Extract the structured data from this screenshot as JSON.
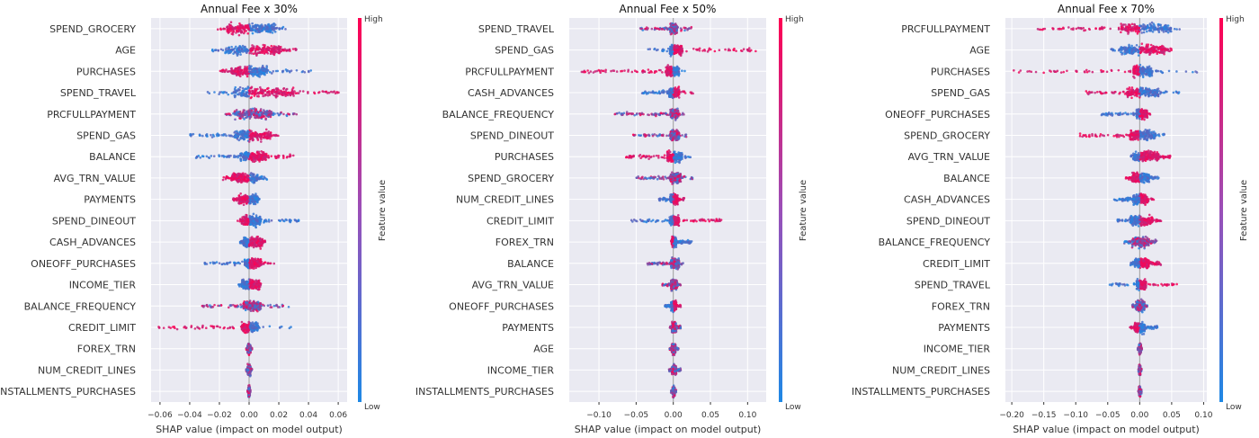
{
  "colorbar": {
    "high_label": "High",
    "low_label": "Low",
    "axis_label": "Feature value",
    "colors": {
      "high": "#ff0052",
      "mid": "#9b4fb8",
      "low": "#1e88e5"
    }
  },
  "colors": {
    "panel_bg": "#eaeaf2",
    "grid": "#ffffff",
    "zero_line": "#999999",
    "text": "#333333"
  },
  "chart_data": [
    {
      "type": "scatter",
      "subtype": "shap-beeswarm",
      "title": "Annual Fee x 30%",
      "xlabel": "SHAP value (impact on model output)",
      "ylabel": "",
      "xlim": [
        -0.066,
        0.066
      ],
      "xticks": [
        -0.06,
        -0.04,
        -0.02,
        0.0,
        0.02,
        0.04,
        0.06
      ],
      "xtick_labels": [
        "−0.06",
        "−0.04",
        "−0.02",
        "0.00",
        "0.02",
        "0.04",
        "0.06"
      ],
      "grid": true,
      "features": [
        {
          "name": "SPEND_GROCERY",
          "min": -0.023,
          "max": 0.029,
          "core": [
            -0.015,
            0.018
          ],
          "high_side": "negative"
        },
        {
          "name": "AGE",
          "min": -0.025,
          "max": 0.032,
          "core": [
            -0.017,
            0.022
          ],
          "high_side": "positive"
        },
        {
          "name": "PURCHASES",
          "min": -0.02,
          "max": 0.044,
          "core": [
            -0.012,
            0.012
          ],
          "high_side": "negative"
        },
        {
          "name": "SPEND_TRAVEL",
          "min": -0.029,
          "max": 0.061,
          "core": [
            -0.01,
            0.03
          ],
          "high_side": "positive"
        },
        {
          "name": "PRCFULLPAYMENT",
          "min": -0.016,
          "max": 0.032,
          "core": [
            -0.01,
            0.015
          ],
          "high_side": "mixed"
        },
        {
          "name": "SPEND_GAS",
          "min": -0.04,
          "max": 0.021,
          "core": [
            -0.01,
            0.015
          ],
          "high_side": "positive"
        },
        {
          "name": "BALANCE",
          "min": -0.037,
          "max": 0.032,
          "core": [
            -0.006,
            0.012
          ],
          "high_side": "positive"
        },
        {
          "name": "AVG_TRN_VALUE",
          "min": -0.018,
          "max": 0.012,
          "core": [
            -0.012,
            0.006
          ],
          "high_side": "negative"
        },
        {
          "name": "PAYMENTS",
          "min": -0.011,
          "max": 0.008,
          "core": [
            -0.007,
            0.006
          ],
          "high_side": "negative"
        },
        {
          "name": "SPEND_DINEOUT",
          "min": -0.009,
          "max": 0.034,
          "core": [
            -0.005,
            0.008
          ],
          "high_side": "negative"
        },
        {
          "name": "CASH_ADVANCES",
          "min": -0.006,
          "max": 0.011,
          "core": [
            -0.004,
            0.009
          ],
          "high_side": "positive"
        },
        {
          "name": "ONEOFF_PURCHASES",
          "min": -0.03,
          "max": 0.021,
          "core": [
            -0.003,
            0.008
          ],
          "high_side": "positive"
        },
        {
          "name": "INCOME_TIER",
          "min": -0.007,
          "max": 0.008,
          "core": [
            -0.005,
            0.007
          ],
          "high_side": "positive"
        },
        {
          "name": "BALANCE_FREQUENCY",
          "min": -0.033,
          "max": 0.027,
          "core": [
            -0.004,
            0.008
          ],
          "high_side": "mixed"
        },
        {
          "name": "CREDIT_LIMIT",
          "min": -0.062,
          "max": 0.029,
          "core": [
            -0.005,
            0.006
          ],
          "high_side": "negative"
        },
        {
          "name": "FOREX_TRN",
          "min": -0.002,
          "max": 0.002,
          "core": [
            -0.001,
            0.001
          ],
          "high_side": "mixed"
        },
        {
          "name": "NUM_CREDIT_LINES",
          "min": -0.002,
          "max": 0.002,
          "core": [
            -0.001,
            0.001
          ],
          "high_side": "mixed"
        },
        {
          "name": "INSTALLMENTS_PURCHASES",
          "min": -0.001,
          "max": 0.001,
          "core": [
            -0.0005,
            0.0005
          ],
          "high_side": "mixed"
        }
      ]
    },
    {
      "type": "scatter",
      "subtype": "shap-beeswarm",
      "title": "Annual Fee x 50%",
      "xlabel": "SHAP value (impact on model output)",
      "ylabel": "",
      "xlim": [
        -0.14,
        0.125
      ],
      "xticks": [
        -0.1,
        -0.05,
        0.0,
        0.05,
        0.1
      ],
      "xtick_labels": [
        "−0.10",
        "−0.05",
        "0.00",
        "0.05",
        "0.10"
      ],
      "grid": true,
      "features": [
        {
          "name": "SPEND_TRAVEL",
          "min": -0.045,
          "max": 0.025,
          "core": [
            -0.004,
            0.005
          ],
          "high_side": "mixed"
        },
        {
          "name": "SPEND_GAS",
          "min": -0.04,
          "max": 0.115,
          "core": [
            -0.005,
            0.012
          ],
          "high_side": "positive"
        },
        {
          "name": "PRCFULLPAYMENT",
          "min": -0.125,
          "max": 0.02,
          "core": [
            -0.01,
            0.008
          ],
          "high_side": "negative"
        },
        {
          "name": "CASH_ADVANCES",
          "min": -0.042,
          "max": 0.027,
          "core": [
            -0.006,
            0.008
          ],
          "high_side": "positive"
        },
        {
          "name": "BALANCE_FREQUENCY",
          "min": -0.08,
          "max": 0.015,
          "core": [
            -0.004,
            0.007
          ],
          "high_side": "mixed"
        },
        {
          "name": "SPEND_DINEOUT",
          "min": -0.055,
          "max": 0.018,
          "core": [
            -0.004,
            0.008
          ],
          "high_side": "mixed"
        },
        {
          "name": "PURCHASES",
          "min": -0.065,
          "max": 0.025,
          "core": [
            -0.008,
            0.012
          ],
          "high_side": "negative"
        },
        {
          "name": "SPEND_GROCERY",
          "min": -0.05,
          "max": 0.028,
          "core": [
            -0.005,
            0.01
          ],
          "high_side": "mixed"
        },
        {
          "name": "NUM_CREDIT_LINES",
          "min": -0.02,
          "max": 0.015,
          "core": [
            -0.004,
            0.006
          ],
          "high_side": "positive"
        },
        {
          "name": "CREDIT_LIMIT",
          "min": -0.058,
          "max": 0.065,
          "core": [
            -0.005,
            0.008
          ],
          "high_side": "positive"
        },
        {
          "name": "FOREX_TRN",
          "min": -0.003,
          "max": 0.025,
          "core": [
            -0.002,
            0.004
          ],
          "high_side": "negative"
        },
        {
          "name": "BALANCE",
          "min": -0.035,
          "max": 0.015,
          "core": [
            -0.003,
            0.008
          ],
          "high_side": "mixed"
        },
        {
          "name": "AVG_TRN_VALUE",
          "min": -0.015,
          "max": 0.01,
          "core": [
            -0.003,
            0.005
          ],
          "high_side": "mixed"
        },
        {
          "name": "ONEOFF_PURCHASES",
          "min": -0.012,
          "max": 0.01,
          "core": [
            -0.003,
            0.004
          ],
          "high_side": "positive"
        },
        {
          "name": "PAYMENTS",
          "min": -0.005,
          "max": 0.01,
          "core": [
            -0.002,
            0.004
          ],
          "high_side": "mixed"
        },
        {
          "name": "AGE",
          "min": -0.005,
          "max": 0.007,
          "core": [
            -0.002,
            0.003
          ],
          "high_side": "mixed"
        },
        {
          "name": "INCOME_TIER",
          "min": -0.006,
          "max": 0.01,
          "core": [
            -0.002,
            0.004
          ],
          "high_side": "mixed"
        },
        {
          "name": "INSTALLMENTS_PURCHASES",
          "min": -0.003,
          "max": 0.004,
          "core": [
            -0.001,
            0.002
          ],
          "high_side": "mixed"
        }
      ]
    },
    {
      "type": "scatter",
      "subtype": "shap-beeswarm",
      "title": "Annual Fee x 70%",
      "xlabel": "SHAP value (impact on model output)",
      "ylabel": "",
      "xlim": [
        -0.21,
        0.105
      ],
      "xticks": [
        -0.2,
        -0.15,
        -0.1,
        -0.05,
        0.0,
        0.05,
        0.1
      ],
      "xtick_labels": [
        "−0.20",
        "−0.15",
        "−0.10",
        "−0.05",
        "0.00",
        "0.05",
        "0.10"
      ],
      "grid": true,
      "features": [
        {
          "name": "PRCFULLPAYMENT",
          "min": -0.16,
          "max": 0.065,
          "core": [
            -0.03,
            0.05
          ],
          "high_side": "negative"
        },
        {
          "name": "AGE",
          "min": -0.045,
          "max": 0.05,
          "core": [
            -0.03,
            0.04
          ],
          "high_side": "positive"
        },
        {
          "name": "PURCHASES",
          "min": -0.2,
          "max": 0.09,
          "core": [
            -0.01,
            0.02
          ],
          "high_side": "negative"
        },
        {
          "name": "SPEND_GAS",
          "min": -0.085,
          "max": 0.062,
          "core": [
            -0.02,
            0.03
          ],
          "high_side": "negative"
        },
        {
          "name": "ONEOFF_PURCHASES",
          "min": -0.06,
          "max": 0.02,
          "core": [
            -0.005,
            0.012
          ],
          "high_side": "positive"
        },
        {
          "name": "SPEND_GROCERY",
          "min": -0.095,
          "max": 0.04,
          "core": [
            -0.015,
            0.025
          ],
          "high_side": "negative"
        },
        {
          "name": "AVG_TRN_VALUE",
          "min": -0.015,
          "max": 0.048,
          "core": [
            -0.01,
            0.03
          ],
          "high_side": "positive"
        },
        {
          "name": "BALANCE",
          "min": -0.022,
          "max": 0.03,
          "core": [
            -0.012,
            0.015
          ],
          "high_side": "negative"
        },
        {
          "name": "CASH_ADVANCES",
          "min": -0.04,
          "max": 0.022,
          "core": [
            -0.01,
            0.012
          ],
          "high_side": "positive"
        },
        {
          "name": "SPEND_DINEOUT",
          "min": -0.035,
          "max": 0.035,
          "core": [
            -0.015,
            0.02
          ],
          "high_side": "positive"
        },
        {
          "name": "BALANCE_FREQUENCY",
          "min": -0.025,
          "max": 0.028,
          "core": [
            -0.012,
            0.015
          ],
          "high_side": "mixed"
        },
        {
          "name": "CREDIT_LIMIT",
          "min": -0.015,
          "max": 0.033,
          "core": [
            -0.008,
            0.015
          ],
          "high_side": "positive"
        },
        {
          "name": "SPEND_TRAVEL",
          "min": -0.048,
          "max": 0.065,
          "core": [
            -0.005,
            0.01
          ],
          "high_side": "positive"
        },
        {
          "name": "FOREX_TRN",
          "min": -0.012,
          "max": 0.012,
          "core": [
            -0.006,
            0.008
          ],
          "high_side": "mixed"
        },
        {
          "name": "PAYMENTS",
          "min": -0.015,
          "max": 0.028,
          "core": [
            -0.008,
            0.008
          ],
          "high_side": "negative"
        },
        {
          "name": "INCOME_TIER",
          "min": -0.003,
          "max": 0.004,
          "core": [
            -0.001,
            0.002
          ],
          "high_side": "mixed"
        },
        {
          "name": "NUM_CREDIT_LINES",
          "min": -0.002,
          "max": 0.003,
          "core": [
            -0.001,
            0.001
          ],
          "high_side": "mixed"
        },
        {
          "name": "INSTALLMENTS_PURCHASES",
          "min": -0.002,
          "max": 0.003,
          "core": [
            -0.001,
            0.001
          ],
          "high_side": "mixed"
        }
      ]
    }
  ]
}
